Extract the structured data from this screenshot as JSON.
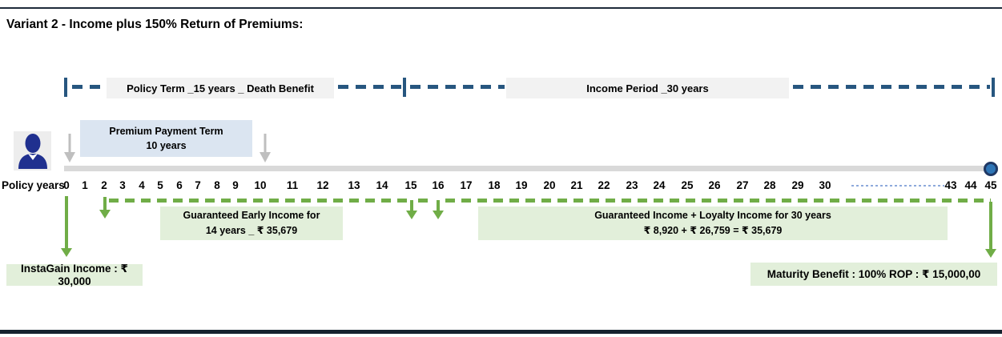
{
  "title": "Variant 2 - Income plus 150% Return of Premiums:",
  "bracket": {
    "policy_term_label": "Policy Term _15 years  _ Death Benefit",
    "income_period_label": "Income Period _30 years"
  },
  "premium_box": {
    "line1": "Premium Payment Term",
    "line2": "10 years"
  },
  "timeline": {
    "axis_label": "Policy years",
    "years": [
      "0",
      "1",
      "2",
      "3",
      "4",
      "5",
      "6",
      "7",
      "8",
      "9",
      "10",
      "11",
      "12",
      "13",
      "14",
      "15",
      "16",
      "17",
      "18",
      "19",
      "20",
      "21",
      "22",
      "23",
      "24",
      "25",
      "26",
      "27",
      "28",
      "29",
      "30",
      "43",
      "44",
      "45"
    ]
  },
  "benefits": {
    "early_income_line1": "Guaranteed Early Income for",
    "early_income_line2": "14 years _ ₹ 35,679",
    "guaranteed_income_line1": "Guaranteed Income + Loyalty Income for 30 years",
    "guaranteed_income_line2": "₹ 8,920 + ₹  26,759 =  ₹ 35,679",
    "instagain": "InstaGain Income : ₹  30,000",
    "maturity": "Maturity Benefit : 100% ROP : ₹ 15,000,00"
  },
  "colors": {
    "navy_bracket": "#27567f",
    "green_accent": "#70ad47",
    "light_green_box": "#e2efda",
    "light_blue_box": "#dbe5f1",
    "gray_label_box": "#f2f2f2",
    "timeline_bar": "#d9d9d9",
    "person_icon_navy": "#20308f",
    "end_dot_fill": "#2e75b6",
    "end_dot_border": "#1f3864"
  }
}
